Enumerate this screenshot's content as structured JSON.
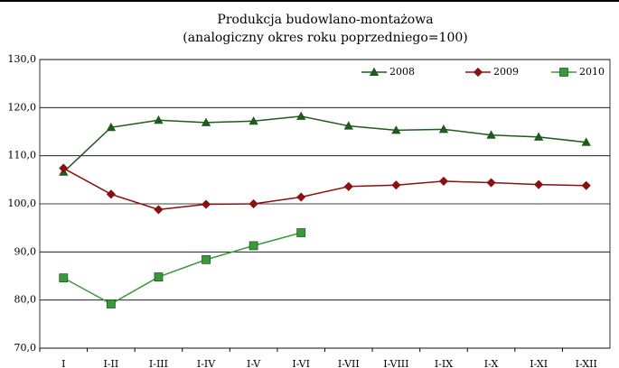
{
  "chart_data": {
    "type": "line",
    "title": "Produkcja budowlano-montażowa",
    "subtitle": "(analogiczny okres roku poprzedniego=100)",
    "categories": [
      "I",
      "I-II",
      "I-III",
      "I-IV",
      "I-V",
      "I-VI",
      "I-VII",
      "I-VIII",
      "I-IX",
      "I-X",
      "I-XI",
      "I-XII"
    ],
    "series": [
      {
        "name": "2008",
        "color": "#1f5a1f",
        "marker": "triangle",
        "values": [
          106.6,
          115.9,
          117.4,
          116.9,
          117.2,
          118.2,
          116.2,
          115.3,
          115.5,
          114.3,
          113.9,
          112.8
        ]
      },
      {
        "name": "2009",
        "color": "#8b1010",
        "marker": "diamond",
        "values": [
          107.4,
          102.0,
          98.8,
          99.9,
          100.0,
          101.4,
          103.6,
          103.9,
          104.7,
          104.4,
          104.0,
          103.8
        ]
      },
      {
        "name": "2010",
        "color": "#3a9a3a",
        "marker": "square",
        "values": [
          84.6,
          79.2,
          84.8,
          88.4,
          91.3,
          94.0,
          null,
          null,
          null,
          null,
          null,
          null
        ]
      }
    ],
    "ylim": [
      70,
      130
    ],
    "yticks": [
      {
        "value": 70,
        "label": "70,0"
      },
      {
        "value": 80,
        "label": "80,0"
      },
      {
        "value": 90,
        "label": "90,0"
      },
      {
        "value": 100,
        "label": "100,0"
      },
      {
        "value": 110,
        "label": "110,0"
      },
      {
        "value": 120,
        "label": "120,0"
      },
      {
        "value": 130,
        "label": "130,0"
      }
    ],
    "grid": true,
    "legend": "top-right"
  }
}
